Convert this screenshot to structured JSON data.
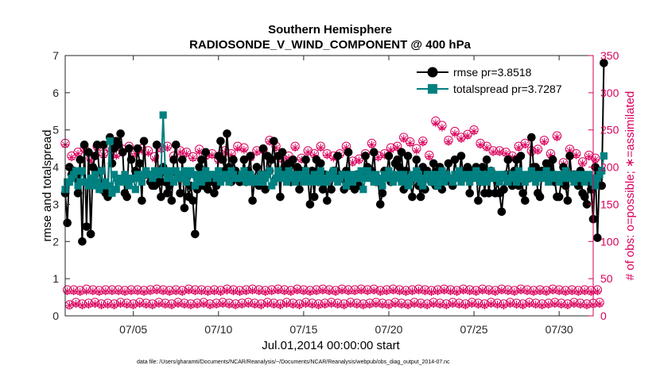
{
  "chart_data": {
    "type": "line",
    "title": "Southern Hemisphere",
    "subtitle": "RADIOSONDE_V_WIND_COMPONENT @ 400 hPa",
    "xlabel": "Jul.01,2014 00:00:00 start",
    "ylabel": "rmse and totalspread",
    "y2label": "# of obs: o=possible; ∗=assimilated",
    "footnote": "data file: /Users/gharamti/Documents/NCAR/Reanalysis/~/Documents/NCAR/Reanalysis/webpub/obs_diag_output_2014-07.nc",
    "xlim": [
      1.0,
      32.0
    ],
    "ylim": [
      0,
      7
    ],
    "y2lim": [
      0,
      350
    ],
    "xticks": [
      5,
      10,
      15,
      20,
      25,
      30
    ],
    "xtick_labels": [
      "07/05",
      "07/10",
      "07/15",
      "07/20",
      "07/25",
      "07/30"
    ],
    "yticks": [
      "0",
      "1",
      "2",
      "3",
      "4",
      "5",
      "6",
      "7"
    ],
    "y2ticks": [
      "0",
      "50",
      "100",
      "150",
      "200",
      "250",
      "300",
      "350"
    ],
    "colors": {
      "rmse": "#000000",
      "spread": "#008080",
      "obs": "#d9005b"
    },
    "legend": [
      "rmse pr=3.8518",
      "totalspread pr=3.7287"
    ],
    "legend_position": "top-right",
    "series": [
      {
        "name": "rmse",
        "values": [
          3.3,
          2.5,
          4.0,
          3.8,
          3.9,
          3.7,
          3.3,
          4.2,
          2.0,
          4.6,
          2.4,
          4.4,
          2.2,
          4.0,
          4.3,
          4.6,
          3.9,
          3.4,
          4.6,
          3.3,
          3.2,
          4.8,
          4.1,
          4.5,
          4.7,
          4.6,
          4.9,
          4.4,
          3.3,
          3.2,
          4.5,
          4.2,
          3.7,
          3.9,
          4.5,
          4.1,
          3.1,
          4.7,
          3.8,
          3.8,
          3.6,
          3.5,
          3.5,
          4.6,
          3.6,
          3.2,
          4.0,
          3.6,
          3.3,
          3.5,
          3.1,
          4.2,
          4.6,
          3.8,
          3.3,
          4.2,
          2.9,
          3.7,
          3.2,
          3.5,
          3.1,
          2.2,
          3.4,
          4.0,
          4.2,
          3.5,
          4.4,
          3.4,
          3.6,
          3.7,
          3.3,
          3.5,
          4.3,
          4.7,
          4.2,
          3.9,
          4.9,
          4.0,
          3.6,
          4.2,
          3.9,
          3.7,
          3.6,
          3.7,
          4.2,
          3.6,
          3.9,
          4.3,
          3.1,
          3.7,
          4.0,
          3.5,
          3.8,
          4.5,
          3.4,
          4.3,
          3.9,
          4.2,
          4.7,
          3.7,
          4.3,
          3.2,
          4.4,
          4.0,
          3.8,
          4.1,
          3.6,
          4.2,
          3.7,
          4.0,
          3.4,
          3.9,
          3.8,
          4.2,
          3.7,
          3.0,
          3.9,
          3.2,
          4.2,
          3.6,
          4.1,
          3.4,
          3.8,
          3.1,
          3.7,
          3.4,
          3.9,
          3.9,
          4.3,
          3.8,
          3.7,
          3.4,
          3.9,
          4.4,
          3.5,
          3.7,
          3.4,
          3.8,
          3.5,
          3.8,
          3.8,
          4.3,
          4.0,
          3.8,
          3.9,
          4.4,
          3.6,
          3.6,
          3.0,
          3.3,
          3.9,
          3.8,
          4.3,
          3.6,
          3.7,
          4.1,
          4.2,
          4.0,
          4.4,
          3.4,
          3.9,
          4.3,
          3.7,
          3.2,
          3.7,
          4.2,
          3.5,
          3.2,
          4.0,
          3.4,
          3.9,
          3.8,
          3.6,
          4.1,
          3.5,
          3.9,
          4.0,
          3.4,
          3.7,
          3.8,
          4.1,
          3.6,
          3.5,
          4.2,
          3.8,
          3.7,
          4.3,
          3.7,
          3.9,
          4.0,
          3.3,
          3.7,
          3.9,
          4.0,
          3.1,
          3.6,
          4.0,
          3.3,
          4.2,
          3.3,
          3.9,
          3.8,
          3.3,
          3.6,
          3.3,
          2.8,
          3.4,
          3.8,
          4.2,
          3.6,
          3.5,
          3.9,
          4.2,
          3.5,
          4.3,
          3.3,
          3.1,
          3.7,
          3.7,
          4.8,
          4.0,
          4.0,
          3.3,
          3.2,
          3.9,
          3.9,
          4.1,
          4.0,
          3.9,
          4.2,
          3.6,
          3.2,
          3.2,
          3.6,
          4.0,
          3.5,
          3.1,
          4.3,
          3.7,
          3.8,
          3.7,
          3.5,
          3.9,
          3.3,
          3.2,
          3.0,
          3.6,
          3.4,
          2.6,
          4.0,
          2.1,
          3.9,
          3.5,
          6.8
        ]
      },
      {
        "name": "totalspread",
        "values": [
          3.4,
          3.6,
          3.6,
          3.7,
          3.8,
          3.9,
          3.5,
          3.6,
          3.9,
          3.6,
          3.6,
          3.5,
          3.7,
          3.5,
          3.8,
          3.6,
          3.4,
          3.9,
          3.5,
          3.6,
          3.5,
          4.7,
          3.3,
          3.8,
          3.4,
          3.6,
          3.7,
          3.6,
          3.8,
          3.6,
          3.5,
          3.7,
          3.7,
          3.4,
          3.8,
          3.7,
          3.6,
          3.8,
          3.9,
          3.8,
          3.8,
          3.7,
          3.9,
          3.8,
          3.8,
          3.9,
          5.4,
          3.9,
          3.7,
          3.8,
          3.9,
          3.6,
          3.9,
          3.8,
          3.7,
          3.7,
          3.9,
          3.6,
          3.8,
          3.9,
          3.8,
          3.5,
          3.7,
          3.8,
          3.6,
          3.7,
          3.9,
          3.7,
          3.8,
          3.8,
          3.8,
          3.7,
          3.9,
          3.6,
          3.7,
          3.8,
          3.8,
          3.6,
          3.9,
          3.8,
          3.7,
          3.7,
          3.7,
          3.8,
          3.9,
          3.6,
          3.7,
          3.8,
          3.6,
          3.7,
          3.6,
          3.6,
          3.8,
          3.6,
          3.7,
          3.8,
          3.9,
          3.5,
          3.6,
          3.7,
          3.9,
          3.7,
          3.8,
          3.8,
          3.6,
          3.9,
          3.7,
          3.8,
          3.6,
          3.7,
          3.8,
          3.8,
          3.6,
          3.9,
          3.7,
          3.6,
          3.7,
          3.8,
          3.6,
          3.7,
          3.9,
          3.6,
          3.7,
          3.6,
          3.8,
          3.7,
          3.9,
          3.7,
          3.6,
          3.7,
          3.8,
          3.8,
          3.5,
          3.7,
          3.8,
          3.6,
          3.7,
          3.8,
          3.7,
          3.9,
          3.4,
          3.7,
          3.9,
          3.8,
          3.7,
          3.6,
          3.8,
          3.6,
          3.7,
          3.5,
          3.8,
          3.7,
          3.9,
          3.8,
          3.6,
          3.7,
          3.8,
          3.7,
          3.6,
          3.8,
          3.7,
          3.5,
          3.6,
          3.8,
          3.7,
          3.9,
          3.8,
          3.6,
          3.5,
          3.7,
          3.8,
          3.8,
          3.6,
          3.7,
          3.8,
          3.5,
          3.7,
          3.9,
          3.6,
          3.8,
          3.7,
          3.7,
          3.6,
          3.8,
          3.7,
          3.9,
          3.6,
          3.7,
          3.8,
          3.7,
          3.6,
          3.8,
          3.7,
          3.9,
          3.8,
          3.6,
          3.7,
          3.8,
          3.6,
          3.7,
          3.9,
          3.7,
          3.8,
          3.7,
          3.6,
          3.8,
          3.8,
          3.7,
          3.6,
          3.7,
          3.8,
          3.7,
          3.6,
          3.9,
          3.7,
          3.8,
          3.6,
          3.7,
          3.8,
          3.9,
          3.7,
          3.6,
          3.8,
          3.7,
          3.8,
          3.7,
          3.9,
          3.6,
          3.7,
          3.8,
          3.7,
          3.8,
          3.6,
          3.7,
          3.8,
          3.9,
          3.7,
          3.8,
          3.7,
          3.6,
          3.8,
          3.7,
          3.7,
          3.8,
          3.6,
          3.7,
          3.8,
          3.7,
          3.6,
          3.5,
          3.7,
          3.8,
          3.9,
          4.3
        ]
      },
      {
        "name": "obs_possible",
        "values": [
          232,
          35,
          15,
          215,
          35,
          18,
          220,
          34,
          16,
          225,
          36,
          17,
          212,
          35,
          18,
          228,
          34,
          16,
          218,
          35,
          17,
          226,
          35,
          16,
          218,
          35,
          18,
          224,
          34,
          17,
          228,
          35,
          16,
          220,
          35,
          18,
          225,
          34,
          17,
          222,
          35,
          16,
          214,
          36,
          18,
          226,
          35,
          17,
          228,
          34,
          16,
          215,
          35,
          18,
          222,
          34,
          17,
          220,
          36,
          16,
          214,
          35,
          17,
          224,
          35,
          18,
          216,
          34,
          16,
          218,
          35,
          17,
          211,
          34,
          18,
          222,
          36,
          17,
          218,
          35,
          16,
          228,
          34,
          17,
          226,
          35,
          18,
          214,
          36,
          17,
          222,
          35,
          16,
          224,
          34,
          18,
          236,
          35,
          17,
          228,
          36,
          16,
          212,
          35,
          18,
          215,
          34,
          17,
          228,
          36,
          16,
          212,
          35,
          18,
          222,
          34,
          17,
          218,
          35,
          16,
          228,
          36,
          17,
          218,
          35,
          18,
          215,
          34,
          17,
          218,
          36,
          16,
          228,
          35,
          18,
          208,
          35,
          17,
          211,
          36,
          16,
          218,
          35,
          17,
          232,
          36,
          18,
          215,
          34,
          17,
          218,
          35,
          16,
          226,
          36,
          18,
          228,
          35,
          17,
          240,
          34,
          16,
          234,
          35,
          18,
          225,
          36,
          17,
          235,
          35,
          16,
          216,
          34,
          18,
          262,
          35,
          17,
          256,
          36,
          16,
          236,
          35,
          18,
          248,
          34,
          17,
          240,
          36,
          16,
          244,
          35,
          18,
          250,
          34,
          17,
          232,
          36,
          16,
          228,
          35,
          18,
          222,
          34,
          17,
          222,
          36,
          16,
          220,
          35,
          18,
          215,
          34,
          17,
          228,
          36,
          16,
          232,
          35,
          18,
          222,
          34,
          17,
          224,
          35,
          16,
          236,
          34,
          17,
          218,
          36,
          18,
          242,
          35,
          17,
          206,
          34,
          16,
          224,
          35,
          18,
          218,
          34,
          17,
          207,
          35,
          16,
          216,
          34,
          17,
          212,
          35,
          18
        ]
      },
      {
        "name": "obs_assimilated",
        "values": [
          230,
          33,
          14,
          213,
          33,
          16,
          218,
          32,
          14,
          222,
          33,
          15,
          209,
          33,
          16,
          226,
          32,
          14,
          216,
          33,
          15,
          223,
          33,
          14,
          215,
          33,
          16,
          221,
          32,
          15,
          226,
          33,
          14,
          218,
          33,
          16,
          222,
          32,
          15,
          219,
          33,
          14,
          211,
          34,
          16,
          224,
          33,
          15,
          226,
          32,
          14,
          212,
          33,
          16,
          220,
          32,
          15,
          218,
          34,
          14,
          212,
          33,
          15,
          221,
          33,
          16,
          214,
          32,
          14,
          216,
          33,
          15,
          208,
          32,
          16,
          220,
          34,
          15,
          216,
          33,
          14,
          225,
          32,
          15,
          223,
          33,
          16,
          212,
          34,
          15,
          220,
          33,
          14,
          222,
          32,
          16,
          234,
          33,
          15,
          226,
          34,
          14,
          210,
          33,
          16,
          212,
          32,
          15,
          226,
          34,
          14,
          210,
          33,
          16,
          220,
          32,
          15,
          216,
          33,
          14,
          226,
          34,
          15,
          216,
          33,
          16,
          212,
          32,
          15,
          216,
          34,
          14,
          226,
          33,
          16,
          206,
          33,
          15,
          209,
          34,
          14,
          216,
          33,
          15,
          230,
          34,
          16,
          213,
          32,
          15,
          216,
          33,
          14,
          223,
          34,
          16,
          226,
          33,
          15,
          238,
          32,
          14,
          232,
          33,
          16,
          222,
          34,
          15,
          233,
          33,
          14,
          214,
          32,
          16,
          259,
          33,
          15,
          253,
          34,
          14,
          234,
          33,
          16,
          245,
          32,
          15,
          238,
          34,
          14,
          242,
          33,
          16,
          248,
          32,
          15,
          230,
          34,
          14,
          226,
          33,
          16,
          220,
          32,
          15,
          220,
          34,
          14,
          218,
          33,
          16,
          213,
          32,
          15,
          226,
          34,
          14,
          230,
          33,
          16,
          220,
          32,
          15,
          222,
          33,
          14,
          234,
          32,
          15,
          216,
          34,
          16,
          240,
          33,
          15,
          204,
          32,
          14,
          222,
          33,
          16,
          216,
          32,
          15,
          205,
          33,
          14,
          214,
          32,
          15,
          210,
          33,
          16
        ]
      }
    ]
  }
}
